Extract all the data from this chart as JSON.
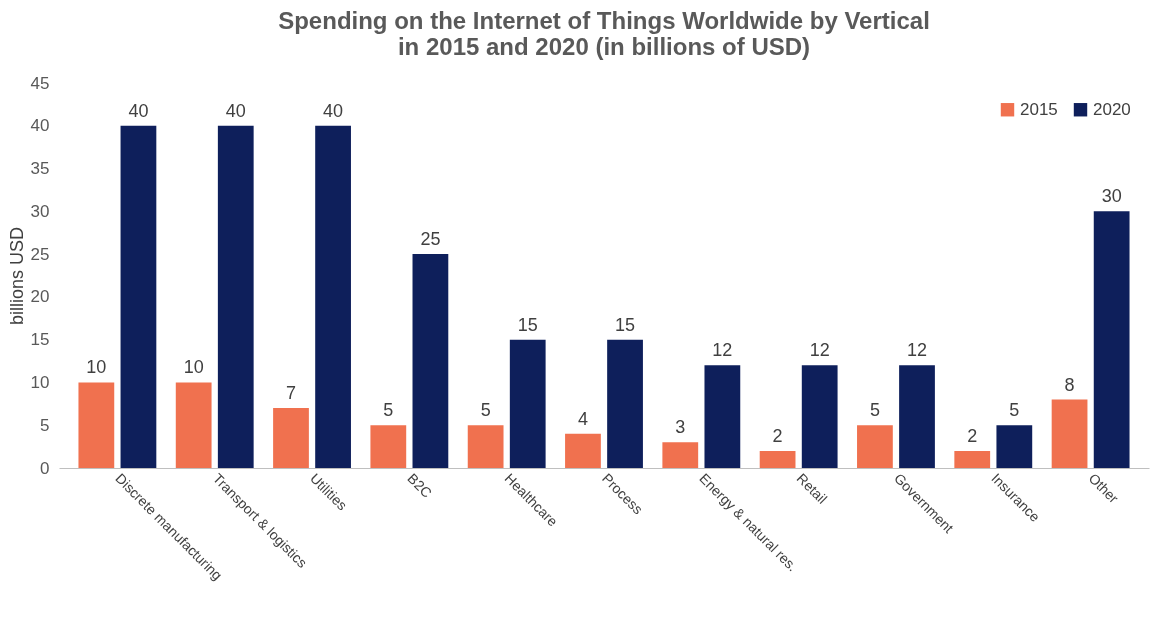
{
  "chart_data": {
    "type": "bar",
    "title": [
      "Spending on the Internet of Things Worldwide by Vertical",
      "in 2015 and 2020 (in billions of USD)"
    ],
    "ylabel": "billions USD",
    "categories": [
      "Discrete manufacturing",
      "Transport & logistics",
      "Utilities",
      "B2C",
      "Healthcare",
      "Process",
      "Energy & natural res.",
      "Retail",
      "Government",
      "Insurance",
      "Other"
    ],
    "series": [
      {
        "name": "2015",
        "color": "#f0714f",
        "values": [
          10,
          10,
          7,
          5,
          5,
          4,
          3,
          2,
          5,
          2,
          8
        ]
      },
      {
        "name": "2020",
        "color": "#0e1f5b",
        "values": [
          40,
          40,
          40,
          25,
          15,
          15,
          12,
          12,
          12,
          5,
          30
        ]
      }
    ],
    "ylim": [
      0,
      45
    ],
    "yticks": [
      0,
      5,
      10,
      15,
      20,
      25,
      30,
      35,
      40,
      45
    ],
    "grid": false,
    "legend": "top right",
    "data_labels": true
  }
}
